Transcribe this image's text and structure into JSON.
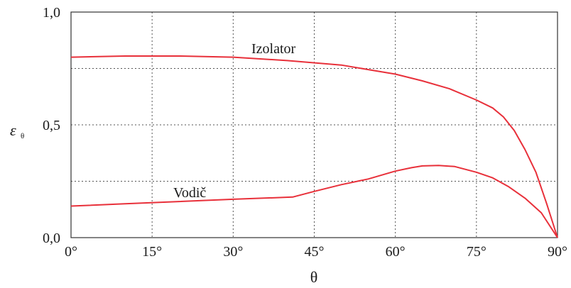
{
  "chart_data": {
    "type": "line",
    "xlabel": "θ",
    "ylabel": "ε",
    "ylabel_subscript": "θ",
    "xlim": [
      0,
      90
    ],
    "ylim": [
      0,
      1
    ],
    "x_ticks": [
      {
        "value": 0,
        "label": "0°"
      },
      {
        "value": 15,
        "label": "15°"
      },
      {
        "value": 30,
        "label": "30°"
      },
      {
        "value": 45,
        "label": "45°"
      },
      {
        "value": 60,
        "label": "60°"
      },
      {
        "value": 75,
        "label": "75°"
      },
      {
        "value": 90,
        "label": "90°"
      }
    ],
    "y_ticks": [
      {
        "value": 0,
        "label": "0,0"
      },
      {
        "value": 0.5,
        "label": "0,5"
      },
      {
        "value": 1,
        "label": "1,0"
      }
    ],
    "y_grid": [
      0.25,
      0.5,
      0.75
    ],
    "x_grid": [
      15,
      30,
      45,
      60,
      75
    ],
    "grid": true,
    "line_color": "#e8303a",
    "series": [
      {
        "name": "Izolator",
        "x": [
          0,
          10,
          20,
          30,
          40,
          50,
          55,
          60,
          65,
          70,
          75,
          78,
          80,
          82,
          84,
          86,
          88,
          90
        ],
        "values": [
          0.8,
          0.805,
          0.805,
          0.8,
          0.785,
          0.765,
          0.745,
          0.725,
          0.695,
          0.66,
          0.61,
          0.575,
          0.535,
          0.475,
          0.39,
          0.29,
          0.15,
          0.0
        ]
      },
      {
        "name": "Vodič",
        "x": [
          0,
          10,
          20,
          30,
          41,
          45,
          50,
          55,
          60,
          63,
          65,
          68,
          71,
          75,
          78,
          81,
          84,
          87,
          90
        ],
        "values": [
          0.14,
          0.15,
          0.16,
          0.17,
          0.18,
          0.205,
          0.235,
          0.26,
          0.295,
          0.31,
          0.318,
          0.32,
          0.315,
          0.29,
          0.265,
          0.225,
          0.175,
          0.11,
          0.0
        ]
      }
    ]
  }
}
